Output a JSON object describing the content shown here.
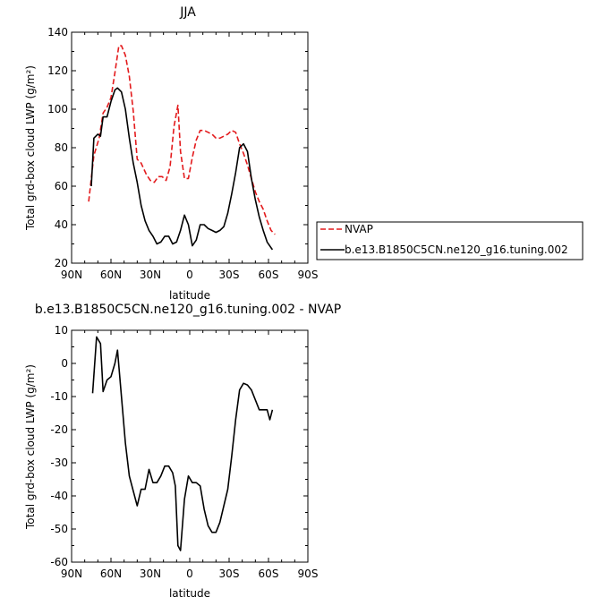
{
  "chart_data": [
    {
      "type": "line",
      "title": "JJA",
      "xlabel": "latitude",
      "ylabel": "Total grd-box cloud LWP (g/m²)",
      "xlim": [
        -90,
        90
      ],
      "ylim": [
        20,
        140
      ],
      "x_ticks": [
        -90,
        -60,
        -30,
        0,
        30,
        60,
        90
      ],
      "x_tick_labels": [
        "90N",
        "60N",
        "30N",
        "0",
        "30S",
        "60S",
        "90S"
      ],
      "y_ticks": [
        20,
        40,
        60,
        80,
        100,
        120,
        140
      ],
      "legend": "right",
      "series": [
        {
          "name": "NVAP",
          "color": "#e31a1c",
          "dash": "dashed",
          "x": [
            -77,
            -73,
            -69,
            -66,
            -63,
            -60,
            -57,
            -54,
            -52,
            -49,
            -46,
            -43,
            -40,
            -37,
            -33,
            -30,
            -27,
            -24,
            -21,
            -18,
            -15,
            -12,
            -9,
            -7,
            -4,
            -1,
            2,
            5,
            8,
            11,
            14,
            17,
            20,
            23,
            26,
            29,
            32,
            35,
            38,
            41,
            44,
            47,
            50,
            53,
            56,
            59,
            62,
            65
          ],
          "y": [
            52,
            76,
            85,
            98,
            101,
            106,
            119,
            133,
            133,
            128,
            117,
            99,
            74,
            72,
            66,
            63,
            62,
            65,
            65,
            63,
            70,
            91,
            102,
            78,
            64,
            64,
            75,
            84,
            89,
            89,
            88,
            87,
            85,
            85,
            86,
            87,
            89,
            88,
            82,
            77,
            71,
            64,
            57,
            52,
            48,
            42,
            37,
            35
          ]
        },
        {
          "name": "b.e13.B1850C5CN.ne120_g16.tuning.002",
          "color": "#000000",
          "dash": "solid",
          "x": [
            -75,
            -73,
            -70,
            -68,
            -66,
            -63,
            -60,
            -57,
            -55,
            -52,
            -49,
            -46,
            -43,
            -40,
            -37,
            -34,
            -31,
            -28,
            -25,
            -22,
            -19,
            -16,
            -13,
            -10,
            -7,
            -4,
            -1,
            2,
            5,
            8,
            11,
            14,
            17,
            20,
            23,
            26,
            29,
            32,
            35,
            38,
            41,
            44,
            47,
            50,
            53,
            56,
            59,
            62,
            63
          ],
          "y": [
            60,
            85,
            87,
            86,
            96,
            96,
            104,
            110,
            111,
            109,
            100,
            85,
            72,
            62,
            50,
            42,
            37,
            34,
            30,
            31,
            34,
            34,
            30,
            31,
            37,
            45,
            40,
            29,
            32,
            40,
            40,
            38,
            37,
            36,
            37,
            39,
            46,
            56,
            67,
            80,
            82,
            78,
            64,
            53,
            44,
            37,
            31,
            28,
            27
          ]
        }
      ]
    },
    {
      "type": "line",
      "title": "b.e13.B1850C5CN.ne120_g16.tuning.002 - NVAP",
      "xlabel": "latitude",
      "ylabel": "Total grd-box cloud LWP (g/m²)",
      "xlim": [
        -90,
        90
      ],
      "ylim": [
        -60,
        10
      ],
      "x_ticks": [
        -90,
        -60,
        -30,
        0,
        30,
        60,
        90
      ],
      "x_tick_labels": [
        "90N",
        "60N",
        "30N",
        "0",
        "30S",
        "60S",
        "90S"
      ],
      "y_ticks": [
        -60,
        -50,
        -40,
        -30,
        -20,
        -10,
        0,
        10
      ],
      "series": [
        {
          "color": "#000000",
          "dash": "solid",
          "x": [
            -74,
            -71,
            -68,
            -66,
            -63,
            -60,
            -57,
            -55,
            -52,
            -49,
            -46,
            -43,
            -40,
            -37,
            -34,
            -31,
            -28,
            -25,
            -22,
            -19,
            -16,
            -13,
            -11,
            -9,
            -7,
            -4,
            -1,
            2,
            5,
            8,
            11,
            14,
            17,
            20,
            23,
            26,
            29,
            32,
            35,
            38,
            41,
            44,
            47,
            50,
            53,
            56,
            59,
            61,
            63
          ],
          "y": [
            -9,
            8,
            6,
            -8.5,
            -5,
            -4,
            0,
            4,
            -10,
            -24,
            -34,
            -38.5,
            -43,
            -38,
            -38,
            -32,
            -36,
            -36,
            -34,
            -31,
            -31,
            -33,
            -37,
            -55,
            -56.5,
            -41,
            -34,
            -36,
            -36,
            -37,
            -44,
            -49,
            -51,
            -51,
            -48,
            -43,
            -38,
            -28,
            -17,
            -8,
            -6,
            -6.5,
            -8,
            -11,
            -14,
            -14,
            -14,
            -17,
            -14
          ]
        }
      ]
    }
  ]
}
